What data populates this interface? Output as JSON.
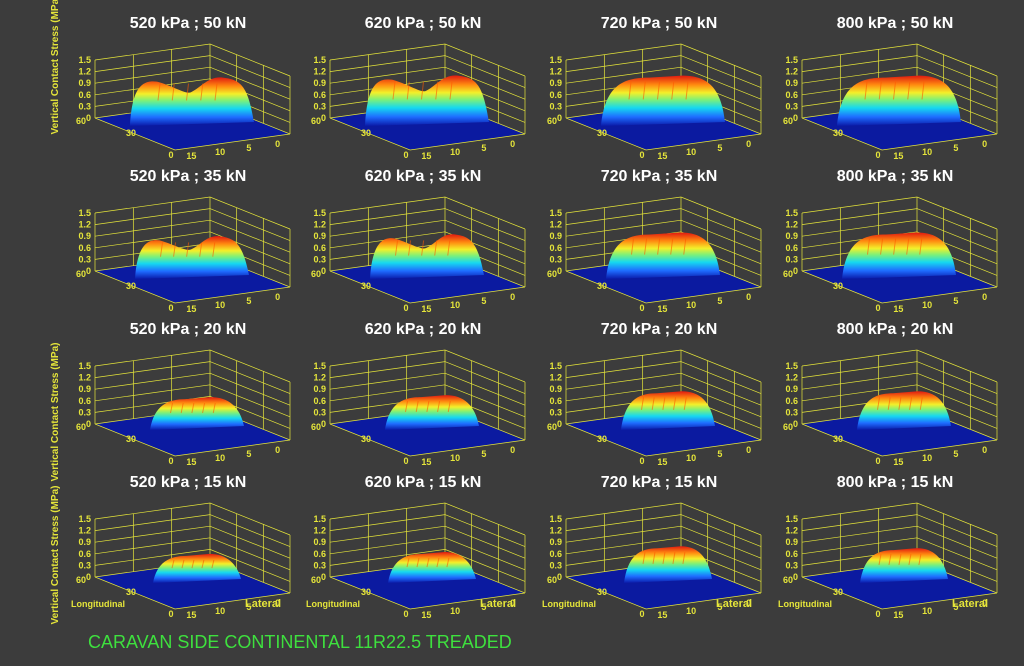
{
  "figure": {
    "footer": "CARAVAN SIDE CONTINENTAL 11R22.5 TREADED",
    "ylabel_row1": "Vertical Contact Stress (MPa)",
    "ylabel_row3": "Vertical Contact Stress (MPa)",
    "ylabel_row4": "Vertical Contact Stress (MPa)"
  },
  "chart_data": {
    "type": "surface",
    "zlabel": "Vertical Contact Stress (MPa)",
    "xlabel": "Longitudinal",
    "ylabel": "Lateral",
    "z_ticks": [
      "0",
      "0.3",
      "0.6",
      "0.9",
      "1.2",
      "1.5"
    ],
    "z_range": [
      0,
      1.5
    ],
    "long_ticks": [
      "60",
      "30",
      "0"
    ],
    "lat_ticks": [
      "15",
      "10",
      "5",
      "0"
    ],
    "colormap": "jet",
    "panel_bg": "#000000",
    "axis_color": "#e5e53a",
    "panels": [
      {
        "title": "520 kPa ; 50 kN",
        "pressure_kPa": 520,
        "load_kN": 50,
        "peak": 1.2
      },
      {
        "title": "620 kPa ; 50 kN",
        "pressure_kPa": 620,
        "load_kN": 50,
        "peak": 1.25
      },
      {
        "title": "720 kPa ; 50 kN",
        "pressure_kPa": 720,
        "load_kN": 50,
        "peak": 1.25
      },
      {
        "title": "800 kPa ; 50 kN",
        "pressure_kPa": 800,
        "load_kN": 50,
        "peak": 1.25
      },
      {
        "title": "520 kPa ; 35 kN",
        "pressure_kPa": 520,
        "load_kN": 35,
        "peak": 1.05
      },
      {
        "title": "620 kPa ; 35 kN",
        "pressure_kPa": 620,
        "load_kN": 35,
        "peak": 1.1
      },
      {
        "title": "720 kPa ; 35 kN",
        "pressure_kPa": 720,
        "load_kN": 35,
        "peak": 1.15
      },
      {
        "title": "800 kPa ; 35 kN",
        "pressure_kPa": 800,
        "load_kN": 35,
        "peak": 1.15
      },
      {
        "title": "520 kPa ; 20 kN",
        "pressure_kPa": 520,
        "load_kN": 20,
        "peak": 0.8
      },
      {
        "title": "620 kPa ; 20 kN",
        "pressure_kPa": 620,
        "load_kN": 20,
        "peak": 0.85
      },
      {
        "title": "720 kPa ; 20 kN",
        "pressure_kPa": 720,
        "load_kN": 20,
        "peak": 0.95
      },
      {
        "title": "800 kPa ; 20 kN",
        "pressure_kPa": 800,
        "load_kN": 20,
        "peak": 0.95
      },
      {
        "title": "520 kPa ; 15 kN",
        "pressure_kPa": 520,
        "load_kN": 15,
        "peak": 0.7
      },
      {
        "title": "620 kPa ; 15 kN",
        "pressure_kPa": 620,
        "load_kN": 15,
        "peak": 0.75
      },
      {
        "title": "720 kPa ; 15 kN",
        "pressure_kPa": 720,
        "load_kN": 15,
        "peak": 0.9
      },
      {
        "title": "800 kPa ; 15 kN",
        "pressure_kPa": 800,
        "load_kN": 15,
        "peak": 0.85
      }
    ]
  }
}
